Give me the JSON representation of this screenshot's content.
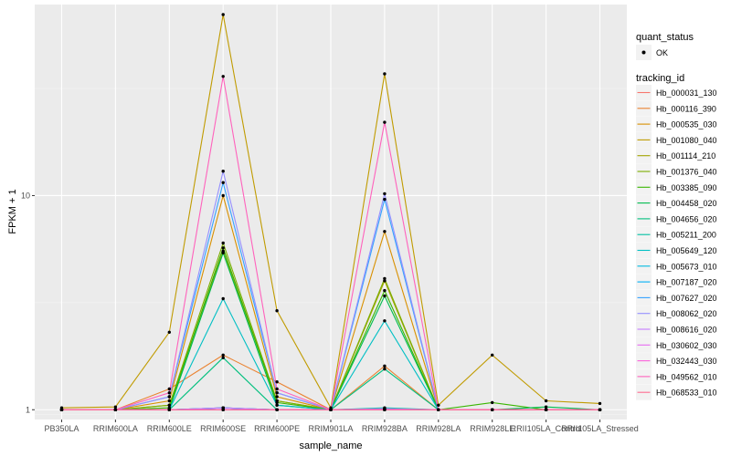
{
  "chart_data": {
    "type": "line",
    "xlabel": "sample_name",
    "ylabel": "FPKM + 1",
    "y_scale": "log10",
    "ylim": [
      0.9,
      78
    ],
    "y_ticks": [
      1,
      10
    ],
    "grid": true,
    "legend_placement": "right",
    "categories": [
      "PB350LA",
      "RRIM600LA",
      "RRIM600LE",
      "RRIM600SE",
      "RRIM600PE",
      "RRIM901LA",
      "RRIM928BA",
      "RRIM928LA",
      "RRIM928LE",
      "RRII105LA_Control",
      "RRII105LA_Stressed"
    ],
    "point_legend": {
      "title": "quant_status",
      "entries": [
        "OK"
      ]
    },
    "color_legend_title": "tracking_id",
    "series": [
      {
        "name": "Hb_000031_130",
        "color": "#F8766D",
        "values": [
          1.0,
          1.0,
          1.0,
          1.02,
          1.0,
          1.0,
          1.01,
          1.0,
          1.0,
          1.0,
          1.0
        ]
      },
      {
        "name": "Hb_000116_390",
        "color": "#EA8331",
        "values": [
          1.0,
          1.0,
          1.25,
          1.8,
          1.35,
          1.0,
          1.6,
          1.0,
          1.0,
          1.0,
          1.0
        ]
      },
      {
        "name": "Hb_000535_030",
        "color": "#D89000",
        "values": [
          1.0,
          1.0,
          1.1,
          10.0,
          1.15,
          1.0,
          6.8,
          1.0,
          1.0,
          1.0,
          1.0
        ]
      },
      {
        "name": "Hb_001080_040",
        "color": "#C09B00",
        "values": [
          1.02,
          1.03,
          2.3,
          70.0,
          2.9,
          1.02,
          37.0,
          1.05,
          1.8,
          1.1,
          1.07
        ]
      },
      {
        "name": "Hb_001114_210",
        "color": "#A3A500",
        "values": [
          1.0,
          1.0,
          1.05,
          5.5,
          1.1,
          1.0,
          4.0,
          1.0,
          1.0,
          1.0,
          1.0
        ]
      },
      {
        "name": "Hb_001376_040",
        "color": "#7CAE00",
        "values": [
          1.0,
          1.0,
          1.05,
          6.0,
          1.1,
          1.0,
          4.1,
          1.0,
          1.0,
          1.0,
          1.0
        ]
      },
      {
        "name": "Hb_003385_090",
        "color": "#39B600",
        "values": [
          1.0,
          1.0,
          1.02,
          5.7,
          1.08,
          1.0,
          3.6,
          1.0,
          1.08,
          1.0,
          1.0
        ]
      },
      {
        "name": "Hb_004458_020",
        "color": "#00BB4E",
        "values": [
          1.0,
          1.0,
          1.0,
          5.4,
          1.05,
          1.0,
          3.4,
          1.0,
          1.0,
          1.03,
          1.0
        ]
      },
      {
        "name": "Hb_004656_020",
        "color": "#00BF7D",
        "values": [
          1.0,
          1.0,
          1.0,
          1.75,
          1.0,
          1.0,
          1.55,
          1.0,
          1.0,
          1.0,
          1.0
        ]
      },
      {
        "name": "Hb_005211_200",
        "color": "#00C1A3",
        "values": [
          1.0,
          1.0,
          1.0,
          1.02,
          1.0,
          1.0,
          1.02,
          1.0,
          1.0,
          1.0,
          1.0
        ]
      },
      {
        "name": "Hb_005649_120",
        "color": "#00BFC4",
        "values": [
          1.0,
          1.0,
          1.0,
          3.3,
          1.05,
          1.0,
          2.6,
          1.0,
          1.0,
          1.0,
          1.0
        ]
      },
      {
        "name": "Hb_005673_010",
        "color": "#00BAE0",
        "values": [
          1.0,
          1.0,
          1.0,
          1.02,
          1.0,
          1.0,
          1.0,
          1.0,
          1.0,
          1.0,
          1.0
        ]
      },
      {
        "name": "Hb_007187_020",
        "color": "#00B0F6",
        "values": [
          1.0,
          1.0,
          1.0,
          1.0,
          1.0,
          1.0,
          1.0,
          1.0,
          1.0,
          1.0,
          1.0
        ]
      },
      {
        "name": "Hb_007627_020",
        "color": "#35A2FF",
        "values": [
          1.0,
          1.0,
          1.15,
          11.5,
          1.2,
          1.0,
          9.6,
          1.0,
          1.0,
          1.0,
          1.0
        ]
      },
      {
        "name": "Hb_008062_020",
        "color": "#9590FF",
        "values": [
          1.0,
          1.0,
          1.15,
          13.0,
          1.2,
          1.0,
          10.2,
          1.0,
          1.0,
          1.0,
          1.0
        ]
      },
      {
        "name": "Hb_008616_020",
        "color": "#C77CFF",
        "values": [
          1.0,
          1.0,
          1.0,
          1.02,
          1.0,
          1.0,
          1.01,
          1.0,
          1.0,
          1.0,
          1.0
        ]
      },
      {
        "name": "Hb_030602_030",
        "color": "#E76BF3",
        "values": [
          1.0,
          1.0,
          1.0,
          1.0,
          1.0,
          1.0,
          1.0,
          1.0,
          1.0,
          1.0,
          1.0
        ]
      },
      {
        "name": "Hb_032443_030",
        "color": "#FA62DB",
        "values": [
          1.0,
          1.0,
          1.0,
          1.0,
          1.0,
          1.0,
          1.0,
          1.0,
          1.0,
          1.0,
          1.0
        ]
      },
      {
        "name": "Hb_049562_010",
        "color": "#FF62BC",
        "values": [
          1.0,
          1.0,
          1.2,
          36.0,
          1.25,
          1.0,
          22.0,
          1.0,
          1.0,
          1.0,
          1.0
        ]
      },
      {
        "name": "Hb_068533_010",
        "color": "#FF6C91",
        "values": [
          1.0,
          1.0,
          1.0,
          1.0,
          1.0,
          1.0,
          1.0,
          1.0,
          1.0,
          1.0,
          1.0
        ]
      }
    ]
  },
  "colors": {
    "panel_background": "#EBEBEB",
    "grid_major": "#FFFFFF",
    "point": "#000000"
  }
}
